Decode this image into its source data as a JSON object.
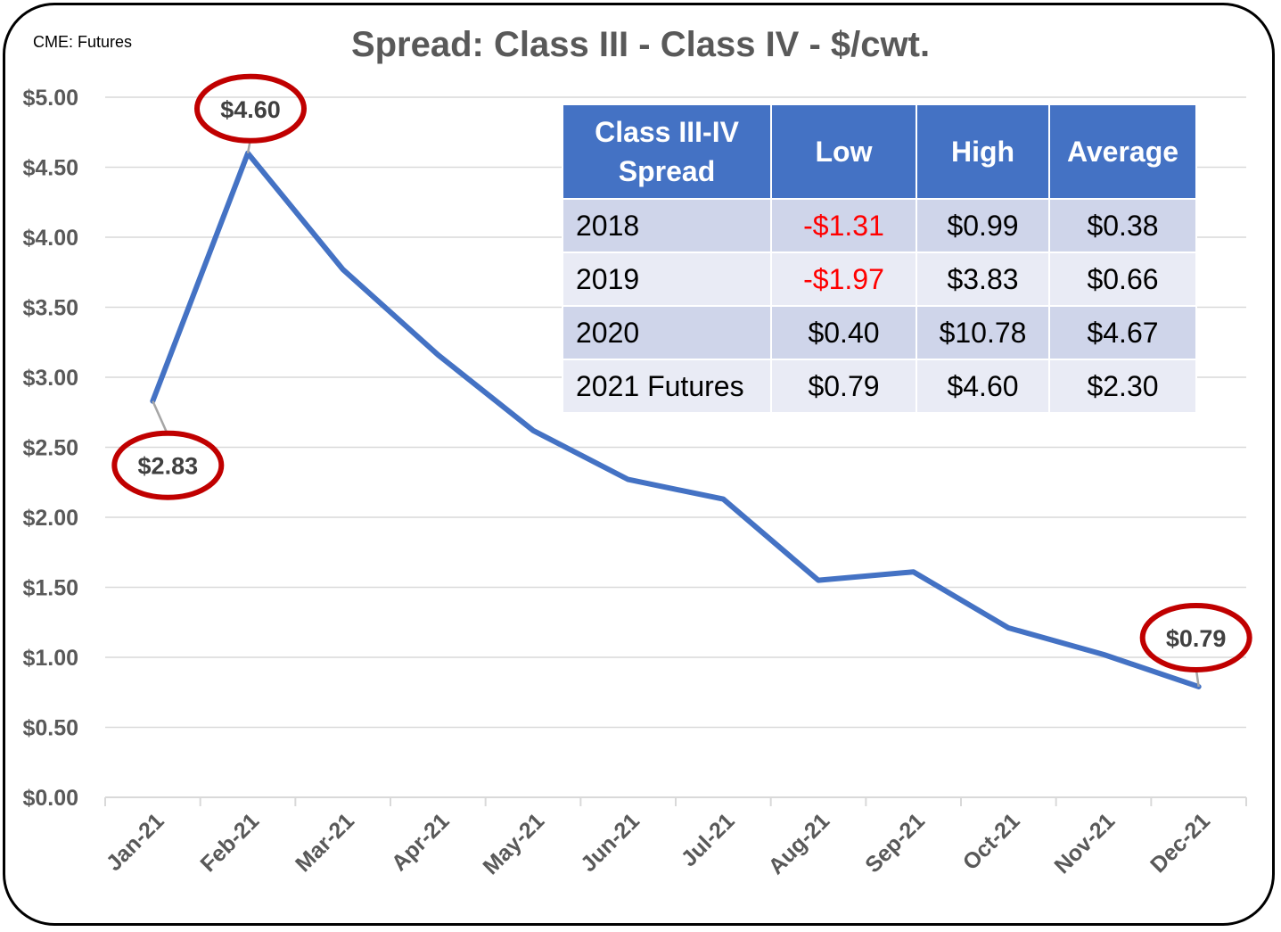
{
  "source_label": "CME: Futures",
  "chart_data": {
    "type": "line",
    "title": "Spread: Class III - Class IV - $/cwt.",
    "categories": [
      "Jan-21",
      "Feb-21",
      "Mar-21",
      "Apr-21",
      "May-21",
      "Jun-21",
      "Jul-21",
      "Aug-21",
      "Sep-21",
      "Oct-21",
      "Nov-21",
      "Dec-21"
    ],
    "series": [
      {
        "values": [
          2.83,
          4.6,
          3.77,
          3.16,
          2.62,
          2.27,
          2.13,
          1.55,
          1.61,
          1.21,
          1.02,
          0.79
        ],
        "color": "#4472c4"
      }
    ],
    "ylim": [
      0,
      5
    ],
    "ytick_step": 0.5,
    "ytick_labels": [
      "$0.00",
      "$0.50",
      "$1.00",
      "$1.50",
      "$2.00",
      "$2.50",
      "$3.00",
      "$3.50",
      "$4.00",
      "$4.50",
      "$5.00"
    ],
    "grid": true,
    "annotations": [
      {
        "category": "Jan-21",
        "label": "$2.83",
        "placement": "below",
        "highlight": "#c00000"
      },
      {
        "category": "Feb-21",
        "label": "$4.60",
        "placement": "above",
        "highlight": "#c00000"
      },
      {
        "category": "Dec-21",
        "label": "$0.79",
        "placement": "above",
        "highlight": "#c00000"
      }
    ]
  },
  "table": {
    "header": [
      "Class III-IV Spread",
      "Low",
      "High",
      "Average"
    ],
    "rows": [
      {
        "label": "2018",
        "low": "-$1.31",
        "high": "$0.99",
        "average": "$0.38",
        "low_negative": true
      },
      {
        "label": "2019",
        "low": "-$1.97",
        "high": "$3.83",
        "average": "$0.66",
        "low_negative": true
      },
      {
        "label": "2020",
        "low": "$0.40",
        "high": "$10.78",
        "average": "$4.67",
        "low_negative": false
      },
      {
        "label": "2021 Futures",
        "low": "$0.79",
        "high": "$4.60",
        "average": "$2.30",
        "low_negative": false
      }
    ]
  },
  "colors": {
    "line": "#4472c4",
    "highlight": "#c00000",
    "table_header": "#4472c4",
    "negative": "#ff0000"
  }
}
